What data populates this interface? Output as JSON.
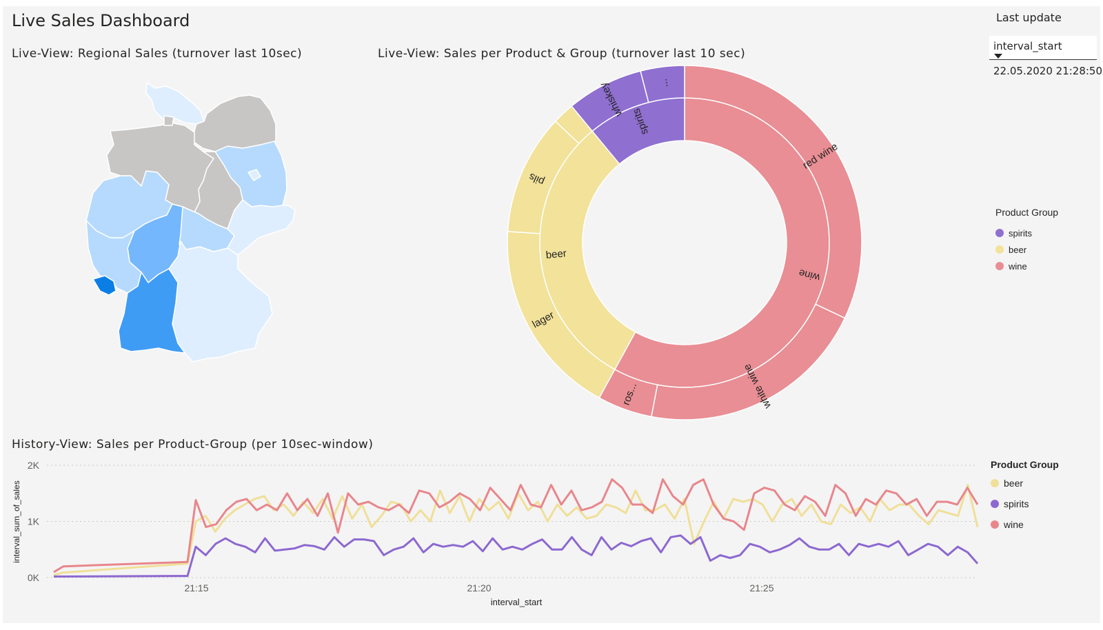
{
  "dashboard": {
    "title": "Live Sales Dashboard"
  },
  "map_visual": {
    "title": "Live-View: Regional Sales (turnover last 10sec)"
  },
  "sunburst_visual": {
    "title": "Live-View: Sales per Product & Group (turnover last 10 sec)",
    "legend": {
      "title": "Product Group",
      "items": [
        {
          "label": "spirits",
          "color": "#8f6fd0"
        },
        {
          "label": "beer",
          "color": "#f2e29a"
        },
        {
          "label": "wine",
          "color": "#e88e94"
        }
      ]
    }
  },
  "last_update": {
    "title": "Last update",
    "slicer_label": "interval_start",
    "value": "22.05.2020 21:28:50"
  },
  "history_visual": {
    "title": "History-View: Sales per Product-Group (per 10sec-window)",
    "legend": {
      "title": "Product Group",
      "items": [
        {
          "label": "beer",
          "color": "#f0df98"
        },
        {
          "label": "spirits",
          "color": "#8c68d0"
        },
        {
          "label": "wine",
          "color": "#e8868c"
        }
      ]
    }
  },
  "chart_data": [
    {
      "type": "pie",
      "subtype": "sunburst",
      "inner_ring": [
        {
          "label": "wine",
          "value": 58,
          "color": "#e88e94"
        },
        {
          "label": "beer",
          "value": 31,
          "color": "#f2e29a"
        },
        {
          "label": "spirits",
          "value": 11,
          "color": "#8f6fd0"
        }
      ],
      "outer_ring": [
        {
          "label": "red wine",
          "group": "wine",
          "value": 32
        },
        {
          "label": "white wine",
          "group": "wine",
          "value": 21
        },
        {
          "label": "ros...",
          "group": "wine",
          "value": 5
        },
        {
          "label": "lager",
          "group": "beer",
          "value": 18
        },
        {
          "label": "pils",
          "group": "beer",
          "value": 11
        },
        {
          "label": "",
          "group": "beer",
          "value": 2
        },
        {
          "label": "whiskey",
          "group": "spirits",
          "value": 7
        },
        {
          "label": "...",
          "group": "spirits",
          "value": 4
        }
      ]
    },
    {
      "type": "line",
      "xlabel": "interval_start",
      "ylabel": "interval_sum_of_sales",
      "x_ticks": [
        "21:15",
        "21:20",
        "21:25"
      ],
      "y_ticks": [
        "0K",
        "1K",
        "2K"
      ],
      "ylim": [
        0,
        2000
      ],
      "grid": true,
      "series": [
        {
          "name": "beer",
          "color": "#f0df98",
          "values": [
            50,
            1000,
            1100,
            820,
            1050,
            1200,
            1300,
            1400,
            1450,
            1200,
            1300,
            1100,
            1350,
            1150,
            1400,
            1050,
            1450,
            1050,
            1300,
            900,
            1100,
            1350,
            1300,
            1000,
            1200,
            1000,
            1550,
            1150,
            1450,
            1000,
            1400,
            1200,
            1350,
            1050,
            1500,
            1200,
            1350,
            1000,
            1300,
            1100,
            1250,
            1050,
            1100,
            1300,
            1250,
            1150,
            1550,
            1200,
            1200,
            1300,
            1050,
            1400,
            600,
            1000,
            1350,
            1050,
            1400,
            1350,
            1400,
            1300,
            1000,
            1300,
            1400,
            1100,
            1300,
            1000,
            950,
            1300,
            1150,
            1250,
            1000,
            1400,
            1200,
            1300,
            1300,
            1100,
            950,
            1200,
            1150,
            1100,
            1650,
            900
          ],
          "start": 50
        },
        {
          "name": "spirits",
          "color": "#8c68d0",
          "values": [
            20,
            550,
            400,
            600,
            700,
            600,
            550,
            450,
            700,
            480,
            500,
            520,
            580,
            560,
            500,
            720,
            550,
            680,
            680,
            650,
            400,
            500,
            550,
            700,
            450,
            600,
            550,
            580,
            550,
            650,
            470,
            700,
            500,
            550,
            500,
            600,
            680,
            500,
            500,
            720,
            500,
            400,
            720,
            500,
            620,
            560,
            650,
            700,
            450,
            720,
            750,
            600,
            720,
            300,
            400,
            350,
            400,
            600,
            550,
            450,
            500,
            580,
            700,
            550,
            500,
            500,
            600,
            400,
            600,
            550,
            600,
            550,
            650,
            400,
            500,
            600,
            550,
            400,
            550,
            450,
            250
          ],
          "start": 20
        },
        {
          "name": "wine",
          "color": "#e8868c",
          "values": [
            100,
            1380,
            900,
            950,
            1200,
            1350,
            1400,
            1200,
            1300,
            1200,
            1500,
            1200,
            1400,
            1100,
            1500,
            800,
            1500,
            1300,
            1350,
            1250,
            1200,
            1300,
            1150,
            1550,
            1500,
            1250,
            1350,
            1500,
            1400,
            1200,
            1600,
            1400,
            1200,
            1650,
            1300,
            1250,
            1650,
            1300,
            1550,
            1200,
            1250,
            1350,
            1750,
            1600,
            1300,
            1300,
            1150,
            1750,
            1450,
            1300,
            1650,
            1750,
            1300,
            1050,
            1000,
            850,
            1500,
            1600,
            1550,
            1300,
            1200,
            1450,
            1350,
            1100,
            1650,
            1500,
            1100,
            1400,
            1300,
            1550,
            1500,
            1300,
            1400,
            1100,
            1350,
            1350,
            1300,
            1600,
            1300
          ],
          "start": 100
        }
      ]
    }
  ]
}
